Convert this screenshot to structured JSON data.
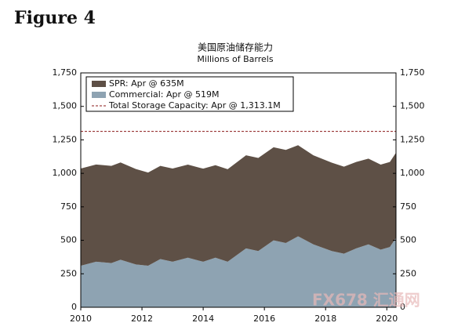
{
  "figure_label": "Figure 4",
  "watermark": "FX678 汇通网",
  "chart_data": {
    "type": "stacked_area",
    "title": "美国原油储存能力",
    "subtitle": "Millions of Barrels",
    "x": [
      2010,
      2010.5,
      2011,
      2011.3,
      2011.8,
      2012.2,
      2012.6,
      2013,
      2013.5,
      2014,
      2014.4,
      2014.8,
      2015.4,
      2015.8,
      2016.3,
      2016.7,
      2017.1,
      2017.6,
      2018.2,
      2018.6,
      2019,
      2019.4,
      2019.8,
      2020.1,
      2020.3
    ],
    "series": [
      {
        "name": "SPR: Apr @ 635M",
        "color": "#5e5046",
        "values": [
          726,
          726,
          726,
          726,
          712,
          696,
          696,
          696,
          695,
          695,
          691,
          691,
          695,
          695,
          695,
          695,
          680,
          665,
          660,
          650,
          645,
          640,
          635,
          635,
          635
        ]
      },
      {
        "name": "Commercial: Apr @ 519M",
        "color": "#8ea3b2",
        "values": [
          310,
          340,
          330,
          355,
          320,
          310,
          360,
          340,
          370,
          340,
          370,
          340,
          440,
          420,
          500,
          480,
          530,
          470,
          420,
          400,
          440,
          470,
          430,
          450,
          519
        ]
      }
    ],
    "reference_line": {
      "name": "Total Storage Capacity: Apr @ 1,313.1M",
      "value": 1313.1,
      "color": "#8b1a1a"
    },
    "xlim": [
      2010,
      2020.3
    ],
    "xticks": [
      2010,
      2012,
      2014,
      2016,
      2018,
      2020
    ],
    "ylim": [
      0,
      1750
    ],
    "yticks": [
      0,
      250,
      500,
      750,
      {
        "value": 1000,
        "label": "1,000"
      },
      {
        "value": 1250,
        "label": "1,250"
      },
      {
        "value": 1500,
        "label": "1,500"
      },
      {
        "value": 1750,
        "label": "1,750"
      }
    ]
  }
}
